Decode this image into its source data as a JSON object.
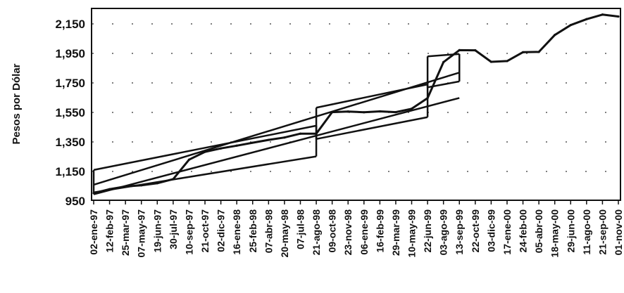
{
  "chart_data": {
    "type": "line",
    "title": "",
    "xlabel": "",
    "ylabel": "Pesos por Dólar",
    "ylim": [
      950,
      2250
    ],
    "yticks": [
      "950",
      "1,150",
      "1,350",
      "1,550",
      "1,750",
      "1,950",
      "2,150"
    ],
    "ytick_values": [
      950,
      1150,
      1350,
      1550,
      1750,
      1950,
      2150
    ],
    "xticks": [
      "02-ene-97",
      "12-feb-97",
      "25-mar-97",
      "07-may-97",
      "19-jun-97",
      "30-jul-97",
      "10-sep-97",
      "21-oct-97",
      "02-dic-97",
      "16-ene-98",
      "25-feb-98",
      "07-abr-98",
      "20-may-98",
      "07-jul-98",
      "21-ago-98",
      "09-oct-98",
      "23-nov-98",
      "06-ene-99",
      "16-feb-99",
      "29-mar-99",
      "10-may-99",
      "22-jun-99",
      "03-ago-99",
      "13-sep-99",
      "22-oct-99",
      "03-dic-99",
      "17-ene-00",
      "24-feb-00",
      "05-abr-00",
      "18-may-00",
      "29-jun-00",
      "11-ago-00",
      "21-sep-00",
      "01-nov-00"
    ],
    "grid": "horizontal dotted",
    "series": [
      {
        "values": [
          1003,
          1030,
          1048,
          1056,
          1070,
          1098,
          1230,
          1283,
          1306,
          1325,
          1345,
          1364,
          1380,
          1406,
          1406,
          1552,
          1556,
          1551,
          1557,
          1552,
          1575,
          1647,
          1891,
          1972,
          1971,
          1893,
          1898,
          1958,
          1960,
          2075,
          2142,
          2182,
          2213,
          2200
        ]
      }
    ],
    "band_segments": [
      {
        "upper": [
          [
            0,
            1160
          ],
          [
            14,
            1460
          ]
        ],
        "lower": [
          [
            0,
            1008
          ],
          [
            14,
            1252
          ]
        ]
      },
      {
        "upper": [
          [
            14,
            1582
          ],
          [
            21,
            1740
          ]
        ],
        "lower": [
          [
            14,
            1370
          ],
          [
            21,
            1518
          ]
        ]
      },
      {
        "upper": [
          [
            21,
            1930
          ],
          [
            23,
            1946
          ]
        ],
        "lower": [
          [
            21,
            1720
          ],
          [
            23,
            1760
          ]
        ]
      }
    ],
    "trend_lines": [
      {
        "points": [
          [
            0,
            1060
          ],
          [
            23,
            1820
          ]
        ]
      },
      {
        "points": [
          [
            0,
            995
          ],
          [
            23,
            1648
          ]
        ]
      }
    ]
  }
}
